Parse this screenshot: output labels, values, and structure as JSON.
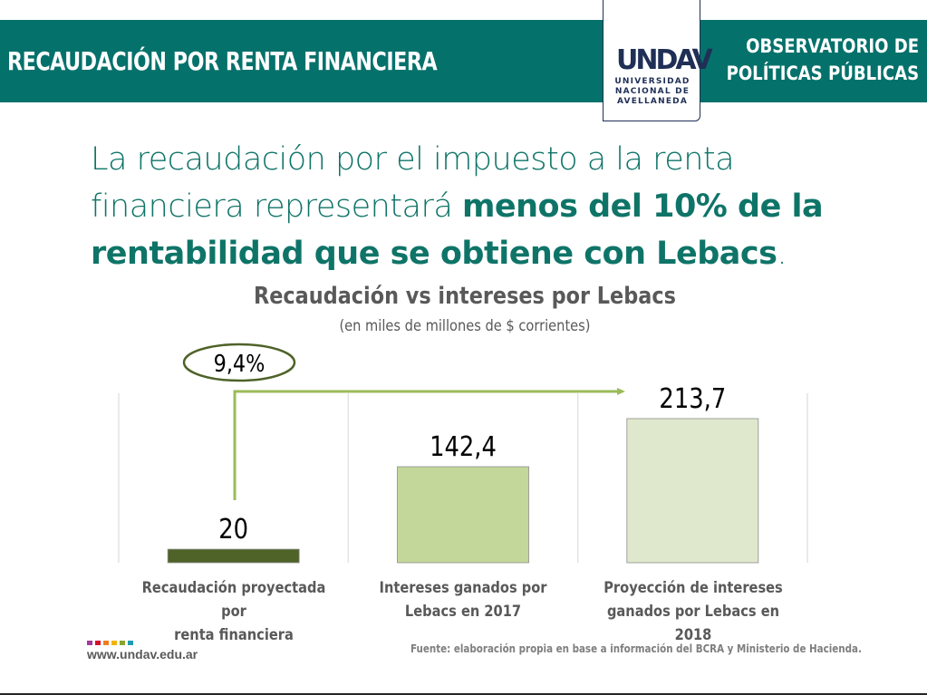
{
  "header": {
    "title": "RECAUDACIÓN POR RENTA FINANCIERA",
    "org_line1": "OBSERVATORIO DE",
    "org_line2": "POLÍTICAS PÚBLICAS",
    "logo_mark": "UNDAV",
    "logo_line1": "UNIVERSIDAD",
    "logo_line2": "NACIONAL DE",
    "logo_line3": "AVELLANEDA",
    "band_color": "#05716b"
  },
  "headline": {
    "part1": "La recaudación por el impuesto a la renta financiera representará ",
    "bold": "menos del 10% de la rentabilidad que se obtiene con Lebacs",
    "end": "."
  },
  "chart_data": {
    "type": "bar",
    "title": "Recaudación vs intereses por Lebacs",
    "subtitle": "(en miles de millones de $ corrientes)",
    "categories": [
      "Recaudación proyectada por renta financiera",
      "Intereses ganados por Lebacs en 2017",
      "Proyección de intereses ganados por Lebacs en 2018"
    ],
    "category_lines": [
      [
        "Recaudación proyectada por",
        "renta financiera"
      ],
      [
        "Intereses ganados por",
        "Lebacs en 2017"
      ],
      [
        "Proyección de intereses",
        "ganados por Lebacs en 2018"
      ]
    ],
    "values": [
      20,
      142.4,
      213.7
    ],
    "value_labels": [
      "20",
      "142,4",
      "213,7"
    ],
    "colors": [
      "#4f6228",
      "#c4d79b",
      "#dfe8cc"
    ],
    "ylim": [
      0,
      213.7
    ],
    "grid": "vertical category separators",
    "annotation": {
      "text": "9,4%",
      "description": "ratio of first bar to third bar, arrow from bar 1 to bar 3",
      "arrow_color": "#9bbb59",
      "ellipse_color": "#4f6228"
    },
    "xlabel": "",
    "ylabel": ""
  },
  "footer": {
    "url": "www.undav.edu.ar",
    "source": "Fuente: elaboración propia en base a información del BCRA y Ministerio de Hacienda.",
    "dot_colors": [
      "#a5389a",
      "#d5122c",
      "#ef7d1a",
      "#f0b400",
      "#8ba32a",
      "#1e9bb0"
    ]
  }
}
